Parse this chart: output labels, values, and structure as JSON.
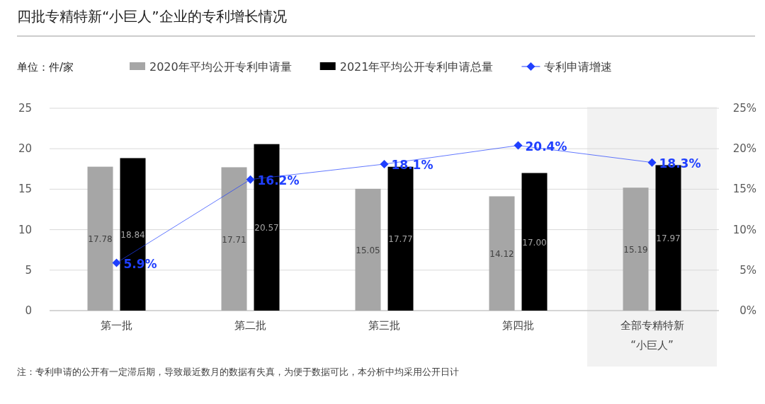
{
  "chart_data": {
    "type": "bar",
    "title": "四批专精特新“小巨人”企业的专利增长情况",
    "ylabel": "单位：件/家",
    "categories": [
      "第一批",
      "第二批",
      "第三批",
      "第四批",
      "全部专精特新“小巨人”"
    ],
    "series": [
      {
        "name": "2020年平均公开专利申请量",
        "color": "#a6a6a6",
        "values": [
          17.78,
          17.71,
          15.05,
          14.12,
          15.19
        ],
        "value_labels": [
          "17.78",
          "17.71",
          "15.05",
          "14.12",
          "15.19"
        ]
      },
      {
        "name": "2021年平均公开专利申请总量",
        "color": "#000000",
        "values": [
          18.84,
          20.57,
          17.77,
          17.0,
          17.97
        ],
        "value_labels": [
          "18.84",
          "20.57",
          "17.77",
          "17.00",
          "17.97"
        ]
      },
      {
        "name": "专利申请增速",
        "type": "line",
        "axis": "y2",
        "color": "#1f3fff",
        "marker": "diamond",
        "values": [
          5.9,
          16.2,
          18.1,
          20.4,
          18.3
        ],
        "value_labels": [
          "5.9%",
          "16.2%",
          "18.1%",
          "20.4%",
          "18.3%"
        ]
      }
    ],
    "ylim": [
      0,
      25
    ],
    "yticks": [
      0,
      5,
      10,
      15,
      20,
      25
    ],
    "y2lim": [
      0,
      25
    ],
    "y2ticks": [
      {
        "value": 0,
        "label": "0%"
      },
      {
        "value": 5,
        "label": "5%"
      },
      {
        "value": 10,
        "label": "10%"
      },
      {
        "value": 15,
        "label": "15%"
      },
      {
        "value": 20,
        "label": "20%"
      },
      {
        "value": 25,
        "label": "25%"
      }
    ],
    "bands": [
      {
        "axis": "x",
        "from": "全部专精特新“小巨人”",
        "to": "全部专精特新“小巨人”",
        "color": "#f2f2f2"
      }
    ],
    "grid": "y",
    "legend": "top",
    "annotations": [
      "注：专利申请的公开有一定滞后期，导致最近数月的数据有失真，为便于数据可比，本分析中均采用公开日计"
    ]
  }
}
